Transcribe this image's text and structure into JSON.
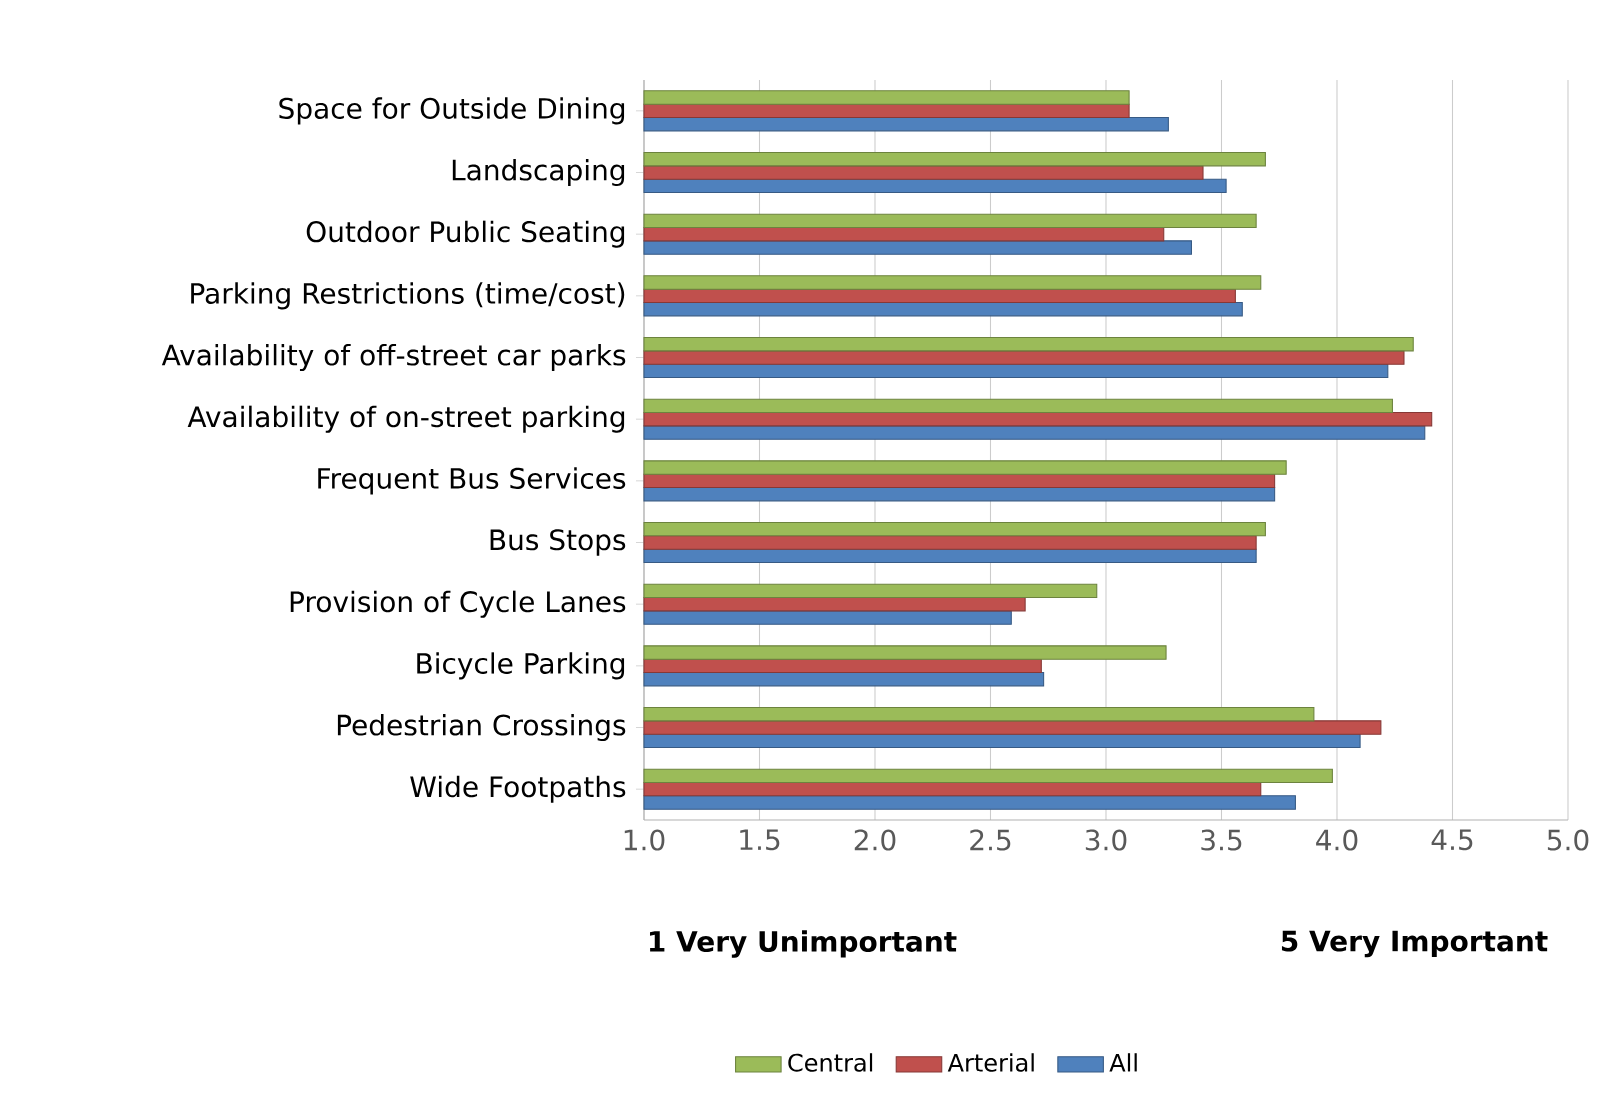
{
  "chart_data": {
    "type": "bar",
    "orientation": "horizontal",
    "categories": [
      "Space for Outside Dining",
      "Landscaping",
      "Outdoor Public Seating",
      "Parking Restrictions (time/cost)",
      "Availability of off-street car parks",
      "Availability of on-street parking",
      "Frequent Bus Services",
      "Bus Stops",
      "Provision of Cycle Lanes",
      "Bicycle Parking",
      "Pedestrian Crossings",
      "Wide Footpaths"
    ],
    "series": [
      {
        "name": "Central",
        "color": "#9bbb59",
        "values": [
          3.1,
          3.69,
          3.65,
          3.67,
          4.33,
          4.24,
          3.78,
          3.69,
          2.96,
          3.26,
          3.9,
          3.98
        ]
      },
      {
        "name": "Arterial",
        "color": "#c0504d",
        "values": [
          3.1,
          3.42,
          3.25,
          3.56,
          4.29,
          4.41,
          3.73,
          3.65,
          2.65,
          2.72,
          4.19,
          3.67
        ]
      },
      {
        "name": "All",
        "color": "#4f81bd",
        "values": [
          3.27,
          3.52,
          3.37,
          3.59,
          4.22,
          4.38,
          3.73,
          3.65,
          2.59,
          2.73,
          4.1,
          3.82
        ]
      }
    ],
    "xlim": [
      1,
      5
    ],
    "xticks": [
      {
        "value": 1,
        "label": "1.0"
      },
      {
        "value": 1.5,
        "label": "1.5"
      },
      {
        "value": 2,
        "label": "2.0"
      },
      {
        "value": 2.5,
        "label": "2.5"
      },
      {
        "value": 3,
        "label": "3.0"
      },
      {
        "value": 3.5,
        "label": "3.5"
      },
      {
        "value": 4,
        "label": "4.0"
      },
      {
        "value": 4.5,
        "label": "4.5"
      },
      {
        "value": 5,
        "label": "5.0"
      }
    ],
    "grid": "x",
    "legend": "bottom",
    "annotations": [
      "**1 Very Unimportant**",
      "**5 Very Important**"
    ]
  }
}
